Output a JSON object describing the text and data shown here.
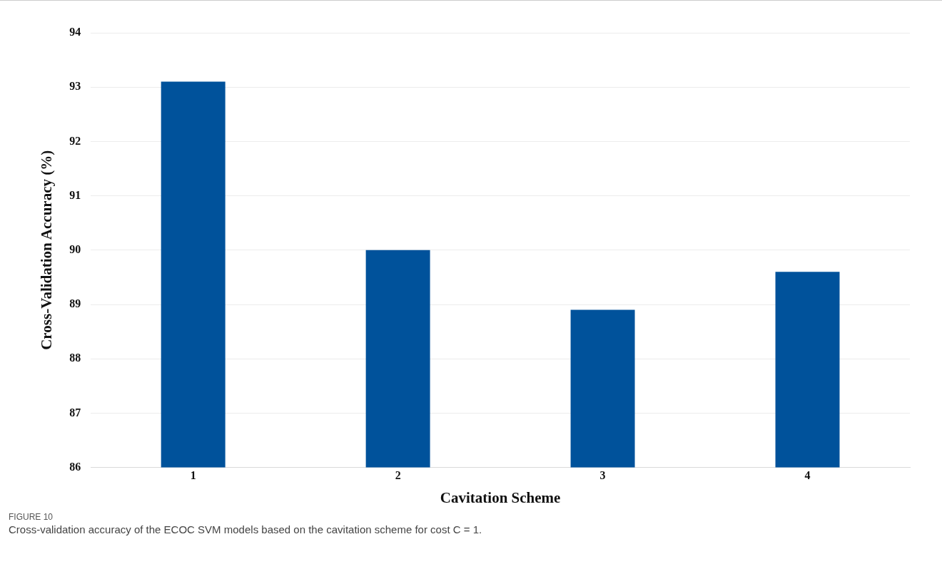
{
  "chart_data": {
    "type": "bar",
    "categories": [
      "1",
      "2",
      "3",
      "4"
    ],
    "values": [
      93.1,
      90.0,
      88.9,
      89.6
    ],
    "color": "#00529b",
    "xlabel": "Cavitation Scheme",
    "ylabel": "Cross-Validation Accuracy (%)",
    "ylim": [
      86,
      94
    ],
    "yticks": [
      86,
      87,
      88,
      89,
      90,
      91,
      92,
      93,
      94
    ],
    "grid": "y",
    "legend": false,
    "annotations": [
      "FIGURE 10",
      "Cross-validation accuracy of the ECOC SVM models based on the cavitation scheme for cost C = 1."
    ]
  }
}
